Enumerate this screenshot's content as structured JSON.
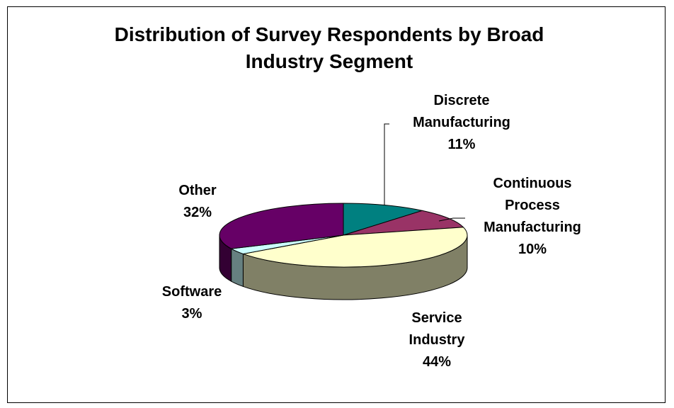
{
  "chart_data": {
    "type": "pie",
    "title": "Distribution of Survey Respondents by Broad Industry Segment",
    "title_lines": [
      "Distribution of Survey Respondents by Broad",
      "Industry Segment"
    ],
    "slices": [
      {
        "name": "Discrete Manufacturing",
        "label_lines": [
          "Discrete",
          "Manufacturing"
        ],
        "value": 11,
        "pct_label": "11%",
        "color": "#008080"
      },
      {
        "name": "Continuous Process Manufacturing",
        "label_lines": [
          "Continuous",
          "Process",
          "Manufacturing"
        ],
        "value": 10,
        "pct_label": "10%",
        "color": "#993366"
      },
      {
        "name": "Service Industry",
        "label_lines": [
          "Service",
          "Industry"
        ],
        "value": 44,
        "pct_label": "44%",
        "color": "#FFFFCC"
      },
      {
        "name": "Software",
        "label_lines": [
          "Software"
        ],
        "value": 3,
        "pct_label": "3%",
        "color": "#CCFFFF"
      },
      {
        "name": "Other",
        "label_lines": [
          "Other"
        ],
        "value": 32,
        "pct_label": "32%",
        "color": "#660066"
      }
    ],
    "legend": "none",
    "style": "3d"
  }
}
